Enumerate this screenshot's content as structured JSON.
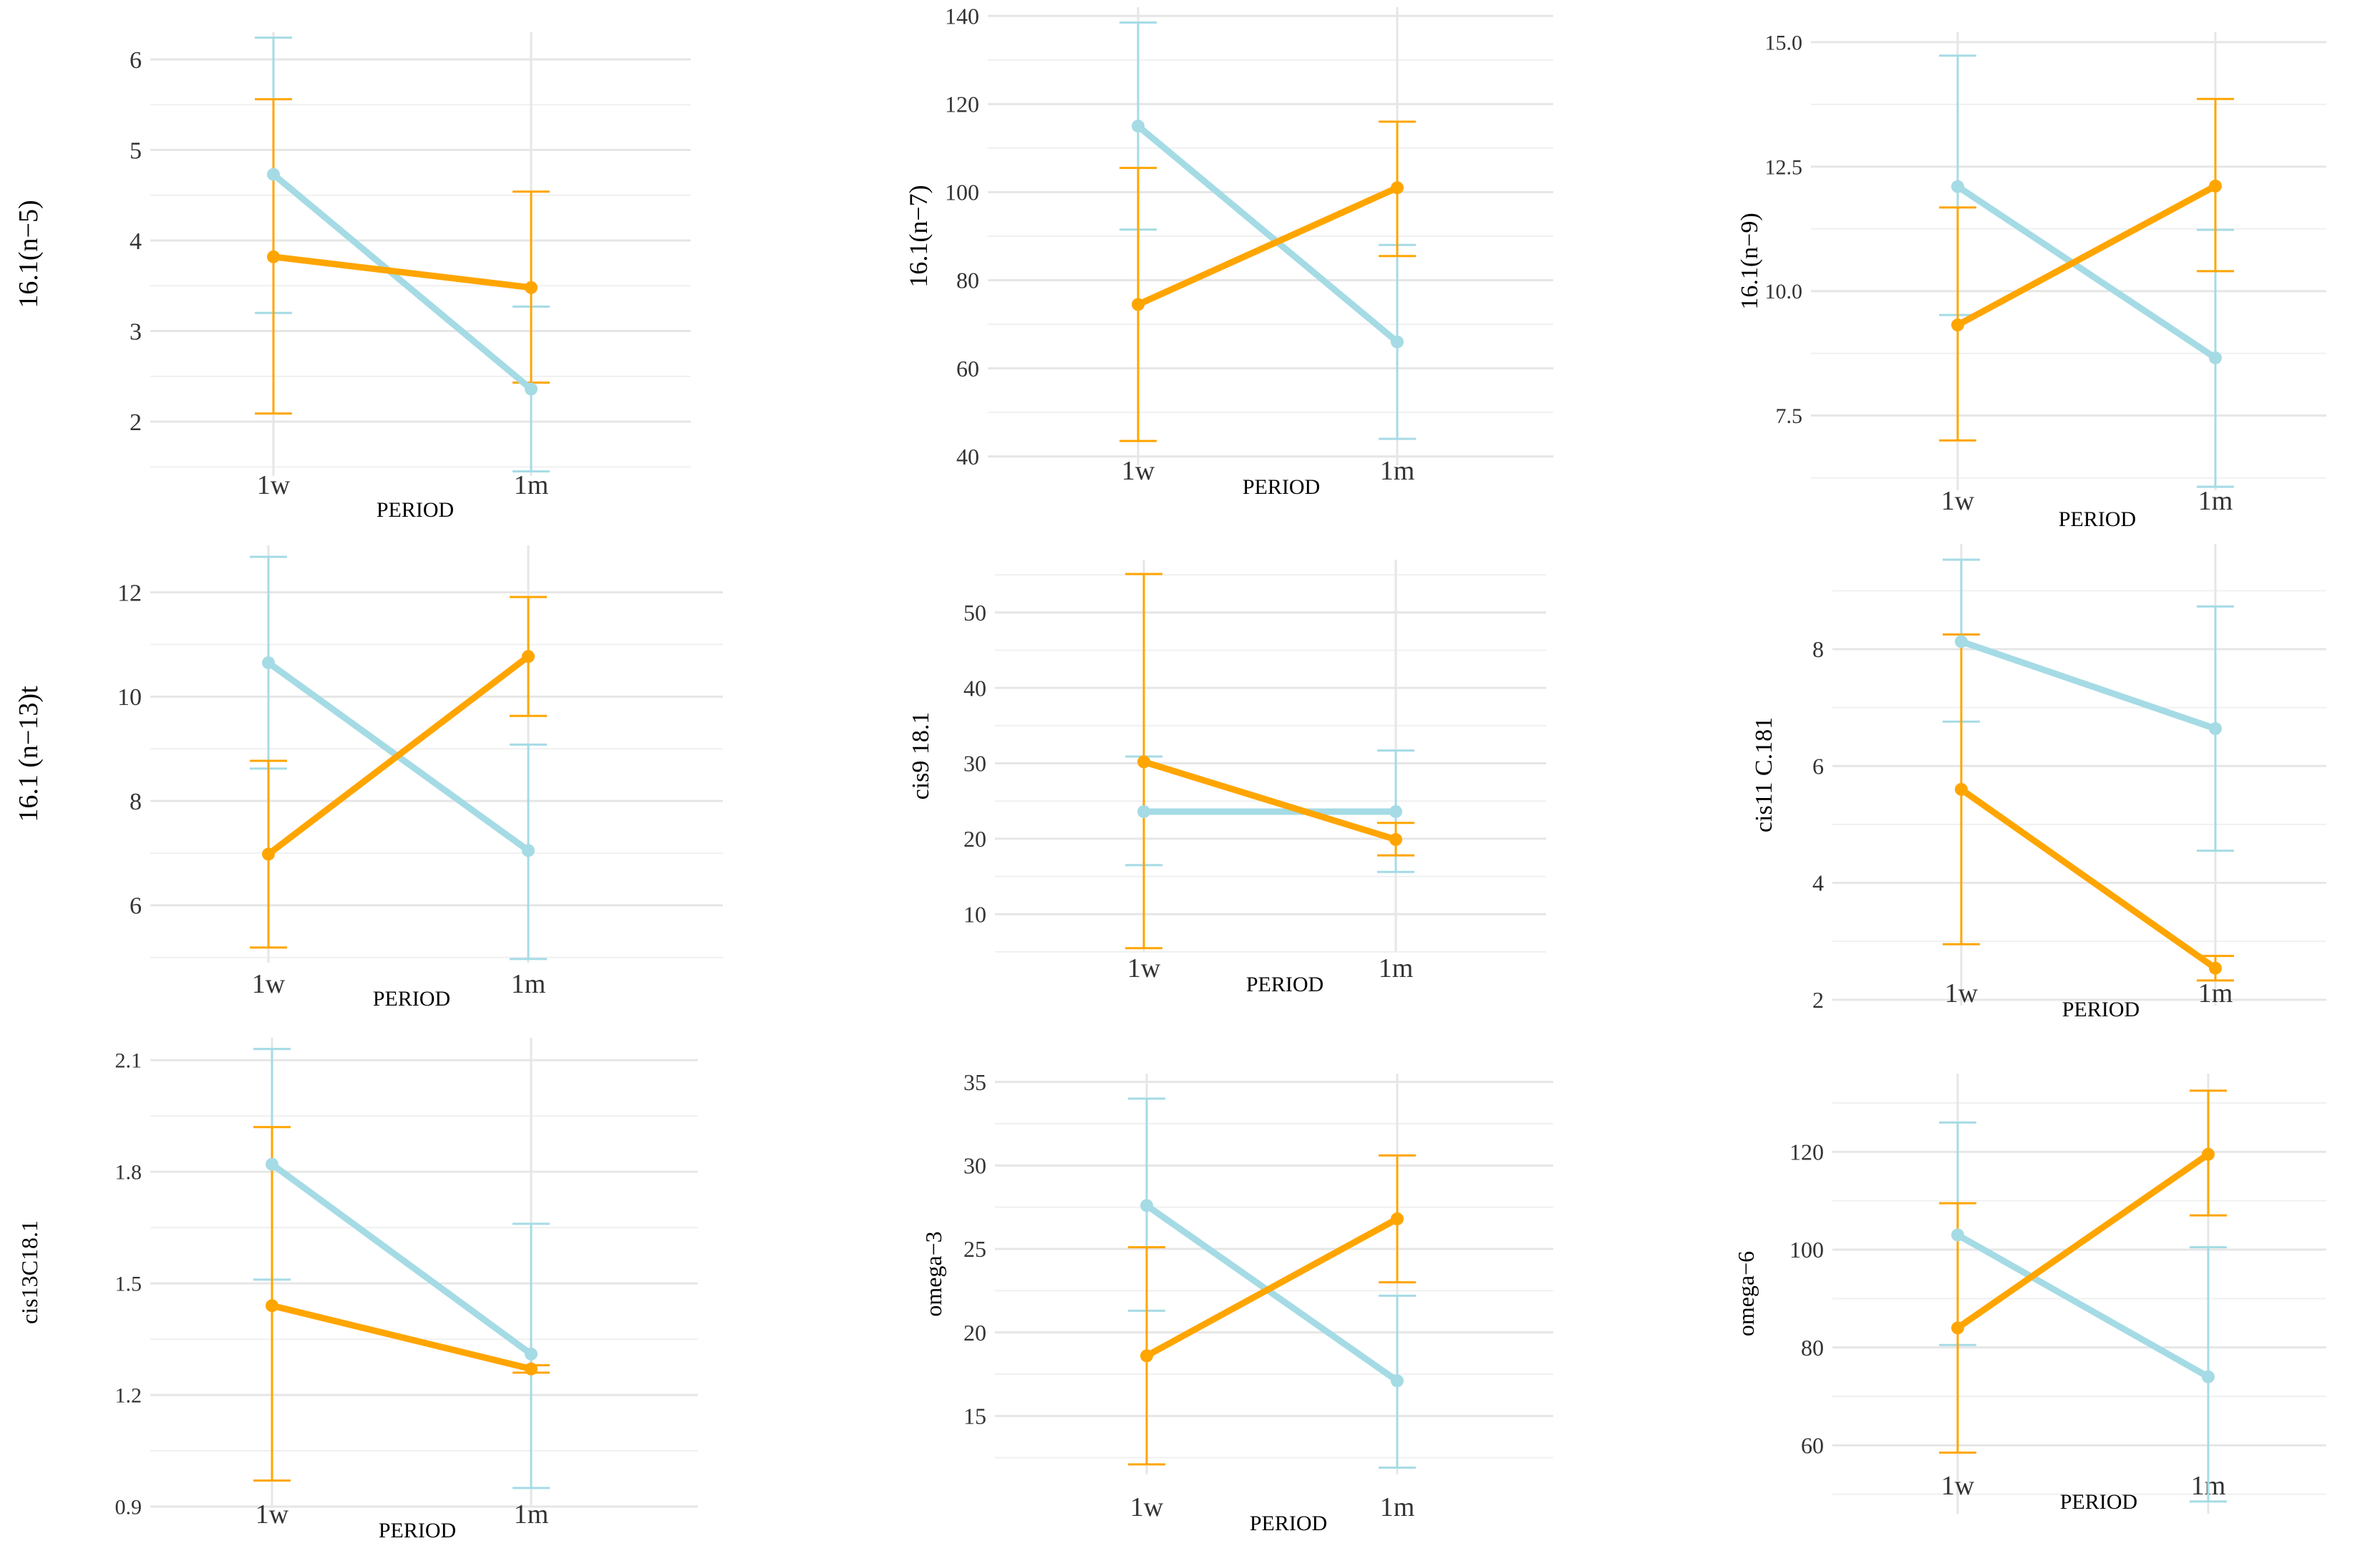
{
  "colors": {
    "series_a": "#a5dbe5",
    "series_b": "#ffa500",
    "grid": "#e6e6e6"
  },
  "chart_data": [
    {
      "type": "line",
      "ylabel": "16.1(n−5)",
      "xlabel": "PERIOD",
      "categories": [
        "1w",
        "1m"
      ],
      "ylim": [
        1.4,
        6.3
      ],
      "yticks": [
        2,
        3,
        4,
        5,
        6
      ],
      "tick_labels": [
        "2",
        "3",
        "4",
        "5",
        "6"
      ],
      "series": [
        {
          "name": "blue",
          "values": [
            4.73,
            2.36
          ],
          "lower": [
            3.2,
            1.45
          ],
          "upper": [
            6.24,
            3.27
          ]
        },
        {
          "name": "orange",
          "values": [
            3.82,
            3.48
          ],
          "lower": [
            2.09,
            2.43
          ],
          "upper": [
            5.56,
            4.54
          ]
        }
      ]
    },
    {
      "type": "line",
      "ylabel": "16.1(n−7)",
      "xlabel": "PERIOD",
      "categories": [
        "1w",
        "1m"
      ],
      "ylim": [
        38,
        142
      ],
      "yticks": [
        40,
        60,
        80,
        100,
        120,
        140
      ],
      "tick_labels": [
        "40",
        "60",
        "80",
        "100",
        "120",
        "140"
      ],
      "series": [
        {
          "name": "blue",
          "values": [
            115,
            66
          ],
          "lower": [
            91.5,
            44
          ],
          "upper": [
            138.5,
            88
          ]
        },
        {
          "name": "orange",
          "values": [
            74.5,
            101
          ],
          "lower": [
            43.5,
            85.5
          ],
          "upper": [
            105.5,
            116
          ]
        }
      ]
    },
    {
      "type": "line",
      "ylabel": "16.1(n−9)",
      "xlabel": "PERIOD",
      "categories": [
        "1w",
        "1m"
      ],
      "ylim": [
        6.0,
        15.2
      ],
      "yticks": [
        7.5,
        10.0,
        12.5,
        15.0
      ],
      "tick_labels": [
        "7.5",
        "10.0",
        "12.5",
        "15.0"
      ],
      "series": [
        {
          "name": "blue",
          "values": [
            12.1,
            8.66
          ],
          "lower": [
            9.52,
            6.07
          ],
          "upper": [
            14.73,
            11.23
          ]
        },
        {
          "name": "orange",
          "values": [
            9.32,
            12.11
          ],
          "lower": [
            7.0,
            10.4
          ],
          "upper": [
            11.68,
            13.86
          ]
        }
      ]
    },
    {
      "type": "line",
      "ylabel": "16.1 (n−13)t",
      "xlabel": "PERIOD",
      "categories": [
        "1w",
        "1m"
      ],
      "ylim": [
        4.9,
        12.9
      ],
      "yticks": [
        6,
        8,
        10,
        12
      ],
      "tick_labels": [
        "6",
        "8",
        "10",
        "12"
      ],
      "series": [
        {
          "name": "blue",
          "values": [
            10.65,
            7.05
          ],
          "lower": [
            8.62,
            4.97
          ],
          "upper": [
            12.68,
            9.08
          ]
        },
        {
          "name": "orange",
          "values": [
            6.98,
            10.77
          ],
          "lower": [
            5.19,
            9.63
          ],
          "upper": [
            8.77,
            11.91
          ]
        }
      ]
    },
    {
      "type": "line",
      "ylabel": "cis9 18.1",
      "xlabel": "PERIOD",
      "categories": [
        "1w",
        "1m"
      ],
      "ylim": [
        5,
        57
      ],
      "yticks": [
        10,
        20,
        30,
        40,
        50
      ],
      "tick_labels": [
        "10",
        "20",
        "30",
        "40",
        "50"
      ],
      "series": [
        {
          "name": "blue",
          "values": [
            23.6,
            23.6
          ],
          "lower": [
            16.5,
            15.6
          ],
          "upper": [
            30.9,
            31.7
          ]
        },
        {
          "name": "orange",
          "values": [
            30.2,
            19.9
          ],
          "lower": [
            5.5,
            17.8
          ],
          "upper": [
            55.1,
            22.1
          ]
        }
      ]
    },
    {
      "type": "line",
      "ylabel": "cis11 C.181",
      "xlabel": "PERIOD",
      "categories": [
        "1w",
        "1m"
      ],
      "ylim": [
        1.9,
        9.8
      ],
      "yticks": [
        2,
        4,
        6,
        8
      ],
      "tick_labels": [
        "2",
        "4",
        "6",
        "8"
      ],
      "series": [
        {
          "name": "blue",
          "values": [
            8.13,
            6.64
          ],
          "lower": [
            6.76,
            4.55
          ],
          "upper": [
            9.53,
            8.73
          ]
        },
        {
          "name": "orange",
          "values": [
            5.6,
            2.54
          ],
          "lower": [
            2.95,
            2.33
          ],
          "upper": [
            8.25,
            2.75
          ]
        }
      ]
    },
    {
      "type": "line",
      "ylabel": "cis13C18.1",
      "xlabel": "PERIOD",
      "categories": [
        "1w",
        "1m"
      ],
      "ylim": [
        0.9,
        2.16
      ],
      "yticks": [
        0.9,
        1.2,
        1.5,
        1.8,
        2.1
      ],
      "tick_labels": [
        "0.9",
        "1.2",
        "1.5",
        "1.8",
        "2.1"
      ],
      "series": [
        {
          "name": "blue",
          "values": [
            1.82,
            1.31
          ],
          "lower": [
            1.51,
            0.95
          ],
          "upper": [
            2.13,
            1.66
          ]
        },
        {
          "name": "orange",
          "values": [
            1.44,
            1.27
          ],
          "lower": [
            0.97,
            1.26
          ],
          "upper": [
            1.92,
            1.28
          ]
        }
      ]
    },
    {
      "type": "line",
      "ylabel": "omega−3",
      "xlabel": "PERIOD",
      "categories": [
        "1w",
        "1m"
      ],
      "ylim": [
        11.5,
        35.5
      ],
      "yticks": [
        15,
        20,
        25,
        30,
        35
      ],
      "tick_labels": [
        "15",
        "20",
        "25",
        "30",
        "35"
      ],
      "series": [
        {
          "name": "blue",
          "values": [
            27.6,
            17.1
          ],
          "lower": [
            21.3,
            11.9
          ],
          "upper": [
            34.0,
            22.2
          ]
        },
        {
          "name": "orange",
          "values": [
            18.6,
            26.8
          ],
          "lower": [
            12.1,
            23.0
          ],
          "upper": [
            25.1,
            30.6
          ]
        }
      ]
    },
    {
      "type": "line",
      "ylabel": "omega−6",
      "xlabel": "PERIOD",
      "categories": [
        "1w",
        "1m"
      ],
      "ylim": [
        46,
        136
      ],
      "yticks": [
        60,
        80,
        100,
        120
      ],
      "tick_labels": [
        "60",
        "80",
        "100",
        "120"
      ],
      "series": [
        {
          "name": "blue",
          "values": [
            103,
            74
          ],
          "lower": [
            80.5,
            48.5
          ],
          "upper": [
            126,
            100.5
          ]
        },
        {
          "name": "orange",
          "values": [
            84,
            119.5
          ],
          "lower": [
            58.5,
            107
          ],
          "upper": [
            109.5,
            132.5
          ]
        }
      ]
    }
  ]
}
